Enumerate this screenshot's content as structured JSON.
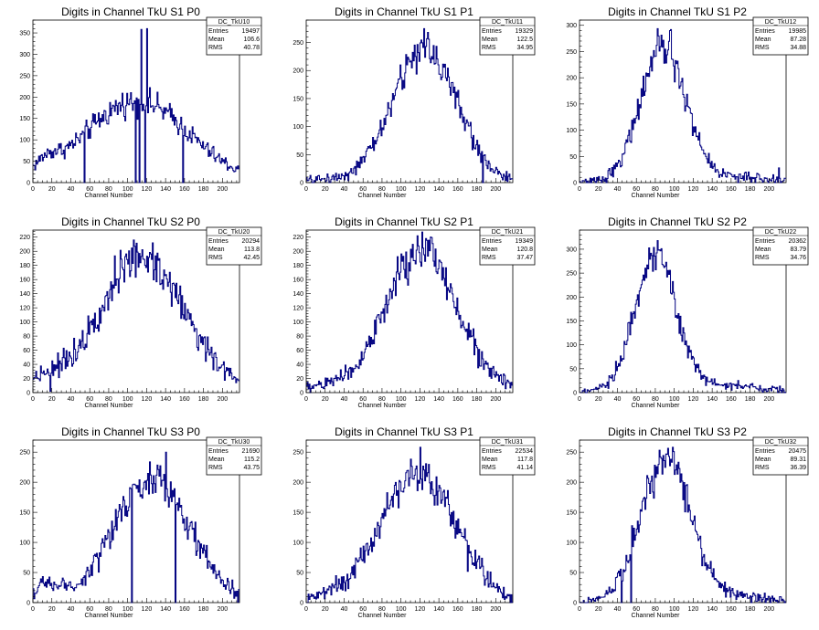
{
  "chart_data": [
    {
      "type": "histogram",
      "title": "Digits in Channel TkU S1 P0",
      "xlabel": "Channel Number",
      "xlim": [
        0,
        218
      ],
      "ylim": [
        0,
        380
      ],
      "xticks": [
        0,
        20,
        40,
        60,
        80,
        100,
        120,
        140,
        160,
        180,
        200
      ],
      "yticks": [
        0,
        50,
        100,
        150,
        200,
        250,
        300,
        350
      ],
      "stats": {
        "name": "DC_TkU10",
        "entries": "19497",
        "mean": "106.6",
        "rms": "40.78"
      },
      "peaks": [
        {
          "x": 110,
          "a": 190,
          "w": 55
        },
        {
          "x": 15,
          "a": 25,
          "w": 12
        }
      ],
      "spikes": [
        {
          "ch": 54,
          "v": 0
        },
        {
          "ch": 108,
          "v": 0
        },
        {
          "ch": 112,
          "v": 0
        },
        {
          "ch": 114,
          "v": 358
        },
        {
          "ch": 118,
          "v": 0
        },
        {
          "ch": 120,
          "v": 360
        },
        {
          "ch": 158,
          "v": 0
        }
      ]
    },
    {
      "type": "histogram",
      "title": "Digits in Channel TkU S1 P1",
      "xlabel": "Channel Number",
      "xlim": [
        0,
        218
      ],
      "ylim": [
        0,
        290
      ],
      "xticks": [
        0,
        20,
        40,
        60,
        80,
        100,
        120,
        140,
        160,
        180,
        200
      ],
      "yticks": [
        0,
        50,
        100,
        150,
        200,
        250
      ],
      "stats": {
        "name": "DC_TkU11",
        "entries": "19329",
        "mean": "122.5",
        "rms": "34.95"
      },
      "peaks": [
        {
          "x": 125,
          "a": 240,
          "w": 34
        },
        {
          "x": 20,
          "a": 5,
          "w": 20
        }
      ],
      "spikes": [
        {
          "ch": 128,
          "v": 268
        },
        {
          "ch": 186,
          "v": 0
        }
      ]
    },
    {
      "type": "histogram",
      "title": "Digits in Channel TkU S1 P2",
      "xlabel": "Channel Number",
      "xlim": [
        0,
        218
      ],
      "ylim": [
        0,
        310
      ],
      "xticks": [
        0,
        20,
        40,
        60,
        80,
        100,
        120,
        140,
        160,
        180,
        200
      ],
      "yticks": [
        0,
        50,
        100,
        150,
        200,
        250,
        300
      ],
      "stats": {
        "name": "DC_TkU12",
        "entries": "19985",
        "mean": "87.28",
        "rms": "34.88"
      },
      "peaks": [
        {
          "x": 88,
          "a": 255,
          "w": 24
        },
        {
          "x": 160,
          "a": 10,
          "w": 40
        }
      ],
      "spikes": [
        {
          "ch": 96,
          "v": 292
        },
        {
          "ch": 210,
          "v": 28
        }
      ]
    },
    {
      "type": "histogram",
      "title": "Digits in Channel TkU S2 P0",
      "xlabel": "Channel Number",
      "xlim": [
        0,
        218
      ],
      "ylim": [
        0,
        230
      ],
      "xticks": [
        0,
        20,
        40,
        60,
        80,
        100,
        120,
        140,
        160,
        180,
        200
      ],
      "yticks": [
        0,
        20,
        40,
        60,
        80,
        100,
        120,
        140,
        160,
        180,
        200,
        220
      ],
      "stats": {
        "name": "DC_TkU20",
        "entries": "20294",
        "mean": "113.8",
        "rms": "42.45"
      },
      "peaks": [
        {
          "x": 115,
          "a": 190,
          "w": 46
        },
        {
          "x": 10,
          "a": 15,
          "w": 15
        }
      ],
      "spikes": [
        {
          "ch": 18,
          "v": 2
        },
        {
          "ch": 106,
          "v": 216
        }
      ]
    },
    {
      "type": "histogram",
      "title": "Digits in Channel TkU S2 P1",
      "xlabel": "Channel Number",
      "xlim": [
        0,
        218
      ],
      "ylim": [
        0,
        230
      ],
      "xticks": [
        0,
        20,
        40,
        60,
        80,
        100,
        120,
        140,
        160,
        180,
        200
      ],
      "yticks": [
        0,
        20,
        40,
        60,
        80,
        100,
        120,
        140,
        160,
        180,
        200,
        220
      ],
      "stats": {
        "name": "DC_TkU21",
        "entries": "19349",
        "mean": "120.8",
        "rms": "37.47"
      },
      "peaks": [
        {
          "x": 122,
          "a": 200,
          "w": 38
        },
        {
          "x": 20,
          "a": 8,
          "w": 20
        }
      ],
      "spikes": [
        {
          "ch": 126,
          "v": 218
        }
      ]
    },
    {
      "type": "histogram",
      "title": "Digits in Channel TkU S2 P2",
      "xlabel": "Channel Number",
      "xlim": [
        0,
        218
      ],
      "ylim": [
        0,
        340
      ],
      "xticks": [
        0,
        20,
        40,
        60,
        80,
        100,
        120,
        140,
        160,
        180,
        200
      ],
      "yticks": [
        0,
        50,
        100,
        150,
        200,
        250,
        300
      ],
      "stats": {
        "name": "DC_TkU22",
        "entries": "20362",
        "mean": "83.79",
        "rms": "34.76"
      },
      "peaks": [
        {
          "x": 80,
          "a": 285,
          "w": 22
        },
        {
          "x": 150,
          "a": 15,
          "w": 40
        }
      ],
      "spikes": [
        {
          "ch": 82,
          "v": 318
        }
      ]
    },
    {
      "type": "histogram",
      "title": "Digits in Channel TkU S3 P0",
      "xlabel": "Channel Number",
      "xlim": [
        0,
        218
      ],
      "ylim": [
        0,
        270
      ],
      "xticks": [
        0,
        20,
        40,
        60,
        80,
        100,
        120,
        140,
        160,
        180,
        200
      ],
      "yticks": [
        0,
        50,
        100,
        150,
        200,
        250
      ],
      "stats": {
        "name": "DC_TkU30",
        "entries": "21690",
        "mean": "115.2",
        "rms": "43.75"
      },
      "peaks": [
        {
          "x": 125,
          "a": 205,
          "w": 40
        },
        {
          "x": 15,
          "a": 25,
          "w": 15
        }
      ],
      "spikes": [
        {
          "ch": 104,
          "v": 0
        },
        {
          "ch": 140,
          "v": 250
        },
        {
          "ch": 150,
          "v": 0
        }
      ]
    },
    {
      "type": "histogram",
      "title": "Digits in Channel TkU S3 P1",
      "xlabel": "Channel Number",
      "xlim": [
        0,
        218
      ],
      "ylim": [
        0,
        270
      ],
      "xticks": [
        0,
        20,
        40,
        60,
        80,
        100,
        120,
        140,
        160,
        180,
        200
      ],
      "yticks": [
        0,
        50,
        100,
        150,
        200,
        250
      ],
      "stats": {
        "name": "DC_TkU31",
        "entries": "22534",
        "mean": "117.8",
        "rms": "41.14"
      },
      "peaks": [
        {
          "x": 118,
          "a": 215,
          "w": 40
        },
        {
          "x": 20,
          "a": 8,
          "w": 20
        }
      ],
      "spikes": [
        {
          "ch": 120,
          "v": 258
        },
        {
          "ch": 170,
          "v": 52
        }
      ]
    },
    {
      "type": "histogram",
      "title": "Digits in Channel TkU S3 P2",
      "xlabel": "Channel Number",
      "xlim": [
        0,
        218
      ],
      "ylim": [
        0,
        270
      ],
      "xticks": [
        0,
        20,
        40,
        60,
        80,
        100,
        120,
        140,
        160,
        180,
        200
      ],
      "yticks": [
        0,
        50,
        100,
        150,
        200,
        250
      ],
      "stats": {
        "name": "DC_TkU32",
        "entries": "20475",
        "mean": "89.31",
        "rms": "36.39"
      },
      "peaks": [
        {
          "x": 90,
          "a": 240,
          "w": 26
        },
        {
          "x": 150,
          "a": 12,
          "w": 40
        }
      ],
      "spikes": [
        {
          "ch": 44,
          "v": 0
        },
        {
          "ch": 54,
          "v": 0
        },
        {
          "ch": 98,
          "v": 258
        }
      ]
    }
  ],
  "labels": {
    "entries": "Entries",
    "mean": "Mean",
    "rms": "RMS"
  },
  "colors": {
    "line": "#000080",
    "axis": "#000000",
    "background": "#ffffff"
  }
}
